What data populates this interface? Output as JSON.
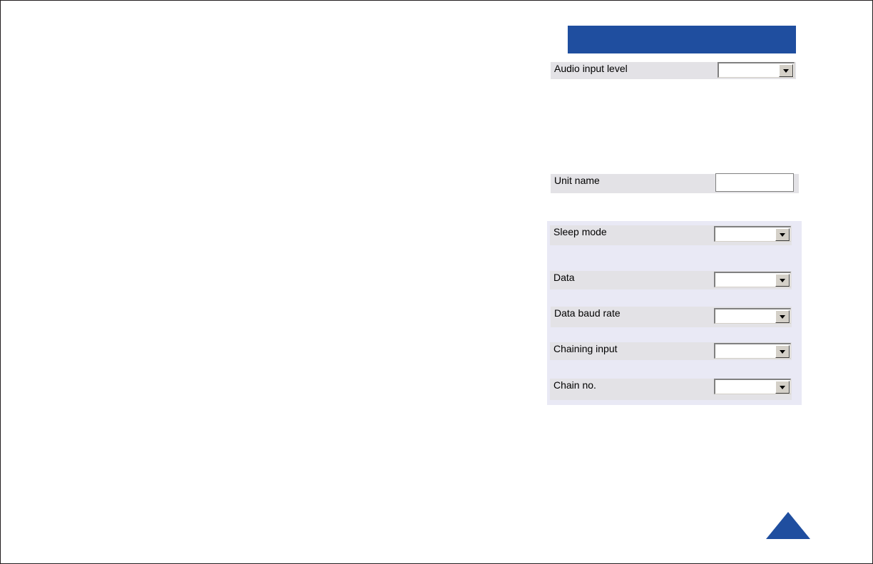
{
  "settings": {
    "audio_input_level": {
      "label": "Audio input level",
      "value": ""
    },
    "unit_name": {
      "label": "Unit name",
      "value": ""
    },
    "sleep_mode": {
      "label": "Sleep mode",
      "value": ""
    },
    "data": {
      "label": "Data",
      "value": ""
    },
    "data_baud_rate": {
      "label": "Data baud rate",
      "value": ""
    },
    "chaining_input": {
      "label": "Chaining input",
      "value": ""
    },
    "chain_no": {
      "label": "Chain no.",
      "value": ""
    }
  },
  "colors": {
    "accent": "#1f4e9f",
    "row_bg": "#e3e2e6",
    "panel_bg": "#e9e9f5"
  },
  "icons": {
    "dropdown": "chevron-down-icon",
    "nav_up": "triangle-up-icon"
  }
}
